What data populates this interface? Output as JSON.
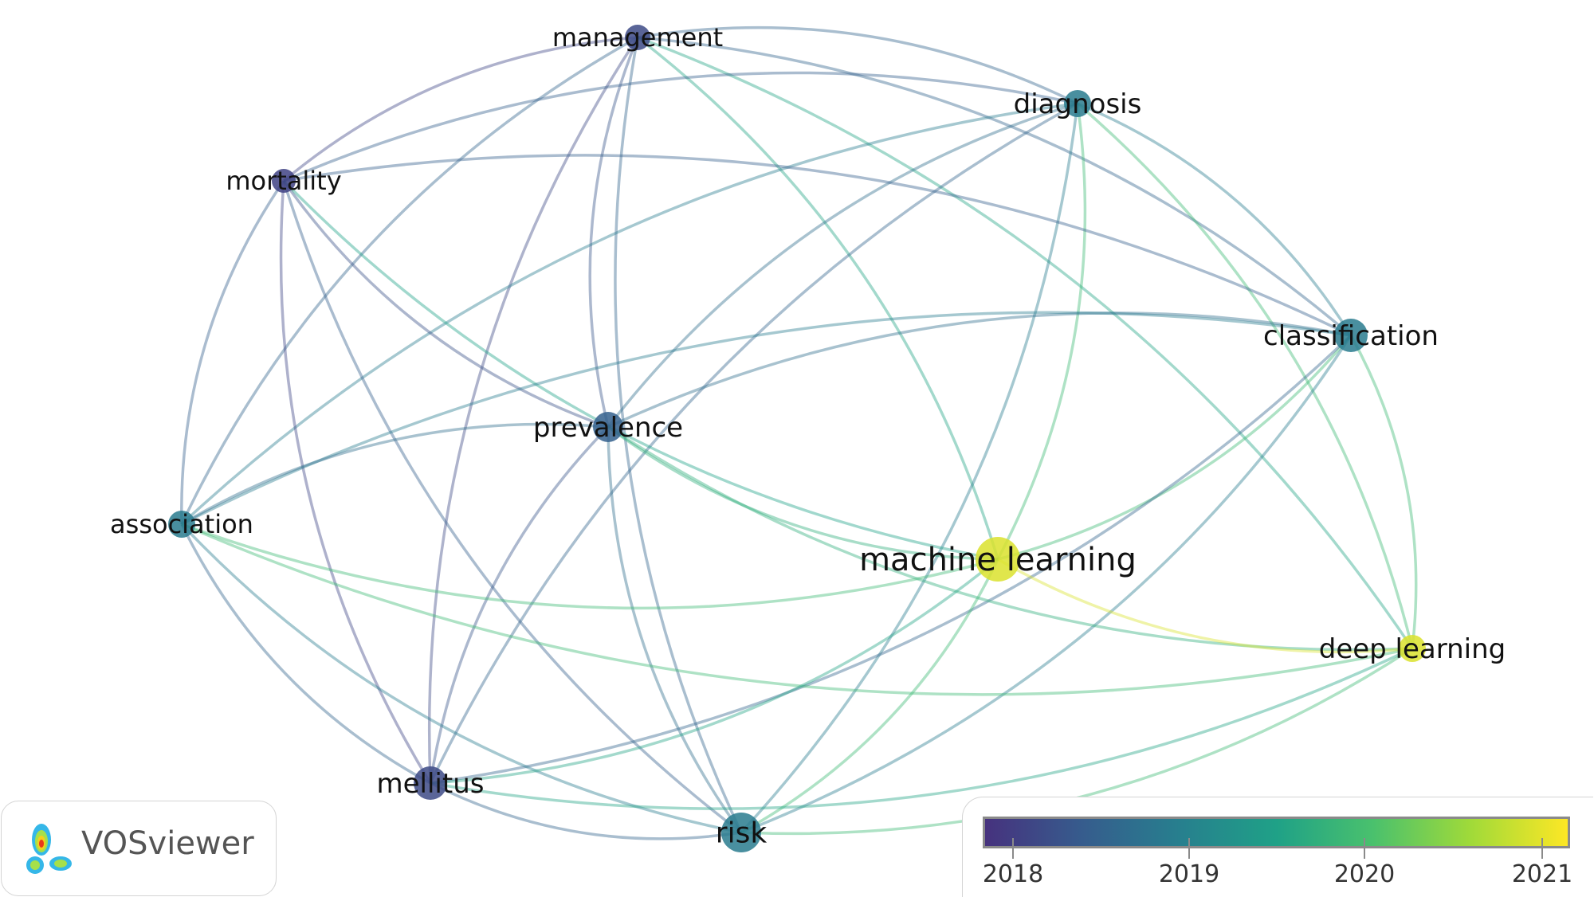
{
  "nodes": [
    {
      "id": "management",
      "label": "management",
      "year": 2018.3
    },
    {
      "id": "diagnosis",
      "label": "diagnosis",
      "year": 2019.0
    },
    {
      "id": "mortality",
      "label": "mortality",
      "year": 2018.2
    },
    {
      "id": "classification",
      "label": "classification",
      "year": 2019.0
    },
    {
      "id": "prevalence",
      "label": "prevalence",
      "year": 2018.6
    },
    {
      "id": "association",
      "label": "association",
      "year": 2019.0
    },
    {
      "id": "machine_learning",
      "label": "machine learning",
      "year": 2021.0
    },
    {
      "id": "deep_learning",
      "label": "deep learning",
      "year": 2021.0
    },
    {
      "id": "mellitus",
      "label": "mellitus",
      "year": 2018.3
    },
    {
      "id": "risk",
      "label": "risk",
      "year": 2019.0
    }
  ],
  "edges": [
    [
      "management",
      "diagnosis"
    ],
    [
      "management",
      "mortality"
    ],
    [
      "management",
      "prevalence"
    ],
    [
      "management",
      "machine_learning"
    ],
    [
      "management",
      "mellitus"
    ],
    [
      "management",
      "risk"
    ],
    [
      "management",
      "classification"
    ],
    [
      "management",
      "association"
    ],
    [
      "management",
      "deep_learning"
    ],
    [
      "diagnosis",
      "mortality"
    ],
    [
      "diagnosis",
      "classification"
    ],
    [
      "diagnosis",
      "prevalence"
    ],
    [
      "diagnosis",
      "association"
    ],
    [
      "diagnosis",
      "machine_learning"
    ],
    [
      "diagnosis",
      "deep_learning"
    ],
    [
      "diagnosis",
      "risk"
    ],
    [
      "diagnosis",
      "mellitus"
    ],
    [
      "mortality",
      "prevalence"
    ],
    [
      "mortality",
      "association"
    ],
    [
      "mortality",
      "mellitus"
    ],
    [
      "mortality",
      "risk"
    ],
    [
      "mortality",
      "machine_learning"
    ],
    [
      "mortality",
      "classification"
    ],
    [
      "classification",
      "prevalence"
    ],
    [
      "classification",
      "machine_learning"
    ],
    [
      "classification",
      "deep_learning"
    ],
    [
      "classification",
      "risk"
    ],
    [
      "classification",
      "mellitus"
    ],
    [
      "classification",
      "association"
    ],
    [
      "prevalence",
      "association"
    ],
    [
      "prevalence",
      "mellitus"
    ],
    [
      "prevalence",
      "risk"
    ],
    [
      "prevalence",
      "machine_learning"
    ],
    [
      "prevalence",
      "deep_learning"
    ],
    [
      "association",
      "machine_learning"
    ],
    [
      "association",
      "mellitus"
    ],
    [
      "association",
      "risk"
    ],
    [
      "association",
      "deep_learning"
    ],
    [
      "machine_learning",
      "deep_learning"
    ],
    [
      "machine_learning",
      "risk"
    ],
    [
      "machine_learning",
      "mellitus"
    ],
    [
      "deep_learning",
      "mellitus"
    ],
    [
      "deep_learning",
      "risk"
    ],
    [
      "mellitus",
      "risk"
    ]
  ],
  "legend": {
    "ticks": [
      "2018",
      "2019",
      "2020",
      "2021"
    ],
    "colors": [
      "#46327e",
      "#365c8d",
      "#277f8e",
      "#1fa187",
      "#4ac16d",
      "#a0da39",
      "#fde725"
    ]
  },
  "logo": {
    "text": "VOSviewer"
  }
}
